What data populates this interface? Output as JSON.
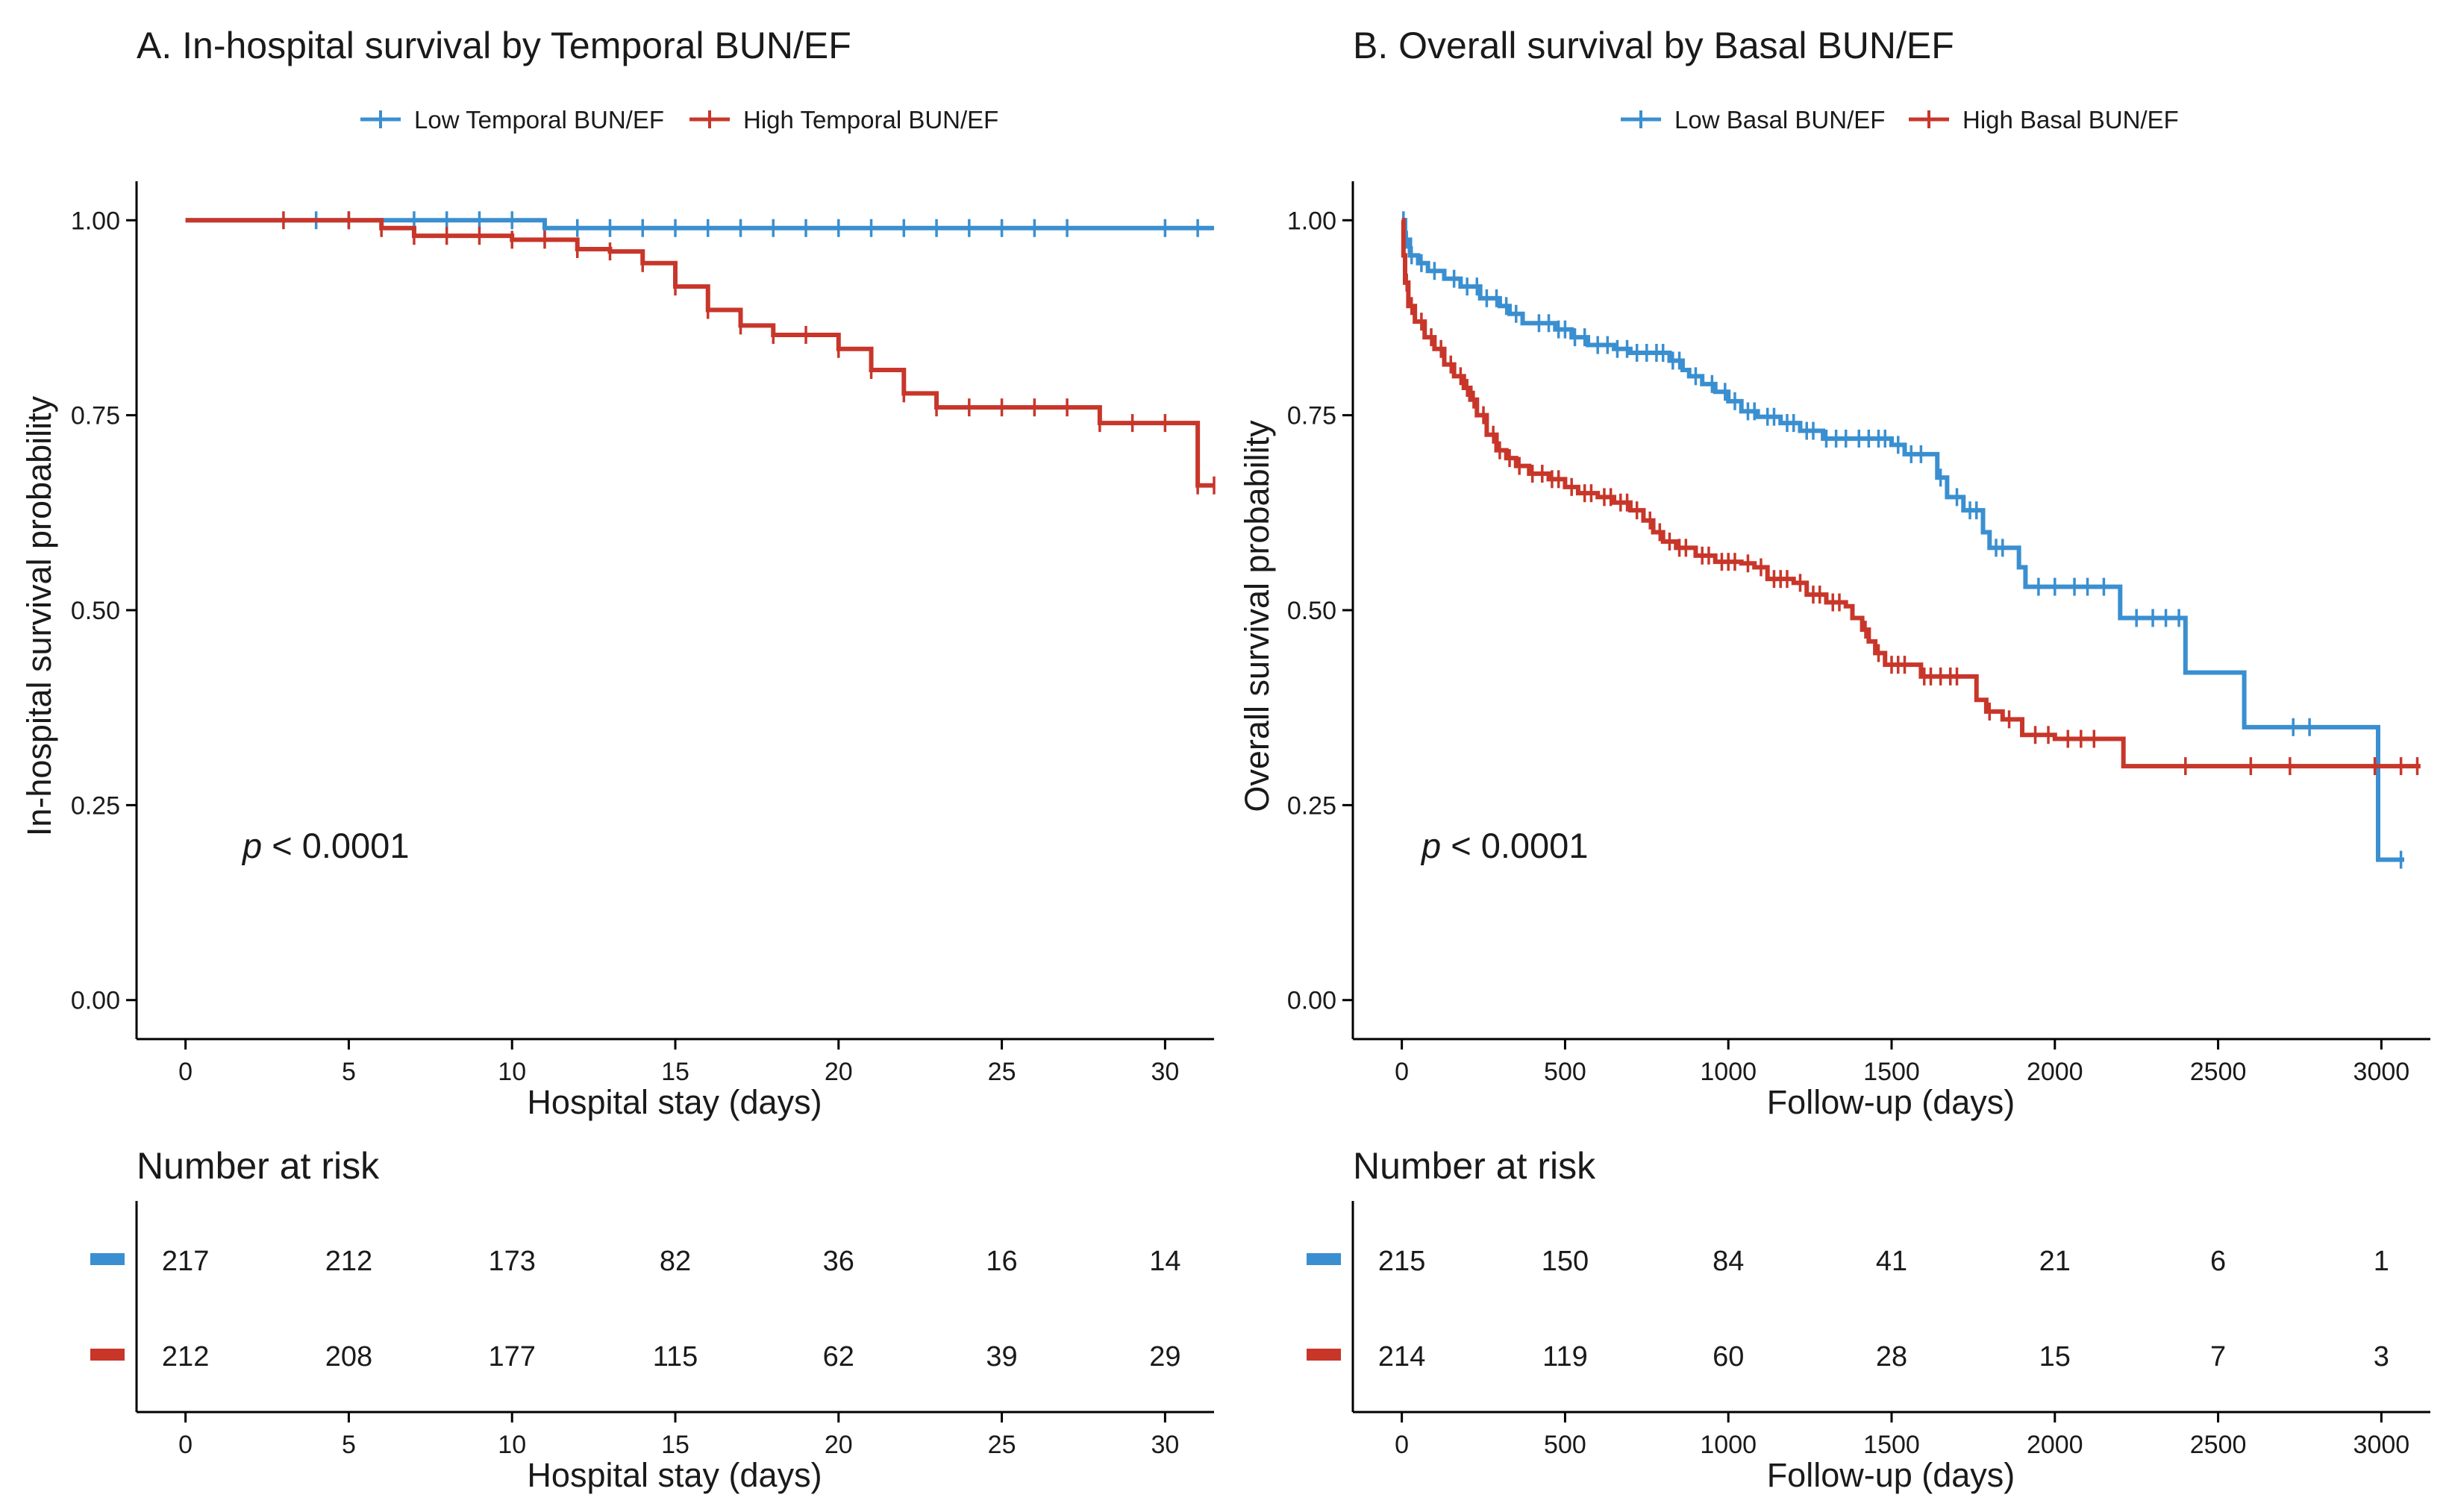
{
  "colors": {
    "low": "#3A8FD0",
    "high": "#C8362A",
    "axis": "#000000",
    "text": "#1a1a1a"
  },
  "chart_data": [
    {
      "type": "line",
      "title": "A. In-hospital survival by Temporal BUN/EF",
      "xlabel": "Hospital stay (days)",
      "ylabel": "In-hospital survival probability",
      "xlim": [
        -1.5,
        31.5
      ],
      "ylim": [
        -0.05,
        1.05
      ],
      "xticks": [
        0,
        5,
        10,
        15,
        20,
        25,
        30
      ],
      "yticks": [
        0,
        0.25,
        0.5,
        0.75,
        1.0
      ],
      "ytick_labels": [
        "0.00",
        "0.25",
        "0.50",
        "0.75",
        "1.00"
      ],
      "legend_position": "top",
      "annotation": {
        "italic": "p",
        "text": " < 0.0001",
        "x": 1.7,
        "y": 0.195
      },
      "series": [
        {
          "name": "Low Temporal BUN/EF",
          "color": "#3A8FD0",
          "steps": [
            [
              0,
              1.0
            ],
            [
              11,
              0.99
            ],
            [
              31.5,
              0.99
            ]
          ],
          "censor": [
            4,
            5,
            7,
            8,
            9,
            10,
            11,
            12,
            13,
            14,
            15,
            16,
            17,
            18,
            19,
            20,
            21,
            22,
            23,
            24,
            25,
            26,
            27,
            30,
            31
          ]
        },
        {
          "name": "High Temporal BUN/EF",
          "color": "#C8362A",
          "steps": [
            [
              0,
              1.0
            ],
            [
              6,
              0.99
            ],
            [
              7,
              0.98
            ],
            [
              10,
              0.975
            ],
            [
              12,
              0.963
            ],
            [
              13,
              0.96
            ],
            [
              14,
              0.945
            ],
            [
              15,
              0.915
            ],
            [
              16,
              0.885
            ],
            [
              17,
              0.865
            ],
            [
              18,
              0.853
            ],
            [
              20,
              0.835
            ],
            [
              21,
              0.808
            ],
            [
              22,
              0.778
            ],
            [
              23,
              0.76
            ],
            [
              27,
              0.76
            ],
            [
              28,
              0.74
            ],
            [
              30,
              0.74
            ],
            [
              31,
              0.66
            ],
            [
              31.5,
              0.66
            ]
          ],
          "censor": [
            3,
            5,
            6,
            7,
            8,
            9,
            10,
            11,
            12,
            13,
            14,
            15,
            16,
            17,
            18,
            19,
            20,
            21,
            22,
            23,
            24,
            25,
            26,
            27,
            28,
            29,
            30,
            31,
            31.5
          ]
        }
      ],
      "risk_table": {
        "title": "Number at risk",
        "rows": [
          {
            "color": "#3A8FD0",
            "values": [
              "217",
              "212",
              "173",
              "82",
              "36",
              "16",
              "14"
            ]
          },
          {
            "color": "#C8362A",
            "values": [
              "212",
              "208",
              "177",
              "115",
              "62",
              "39",
              "29"
            ]
          }
        ],
        "xlabel": "Hospital stay (days)"
      }
    },
    {
      "type": "line",
      "title": "B. Overall survival by Basal BUN/EF",
      "xlabel": "Follow-up (days)",
      "ylabel": "Overall survival probability",
      "xlim": [
        -150,
        3150
      ],
      "ylim": [
        -0.05,
        1.05
      ],
      "xticks": [
        0,
        500,
        1000,
        1500,
        2000,
        2500,
        3000
      ],
      "yticks": [
        0,
        0.25,
        0.5,
        0.75,
        1.0
      ],
      "ytick_labels": [
        "0.00",
        "0.25",
        "0.50",
        "0.75",
        "1.00"
      ],
      "legend_position": "top",
      "annotation": {
        "italic": "p",
        "text": " < 0.0001",
        "x": 50,
        "y": 0.195
      },
      "series": [
        {
          "name": "Low Basal BUN/EF",
          "color": "#3A8FD0",
          "steps": [
            [
              0,
              1.0
            ],
            [
              10,
              0.975
            ],
            [
              25,
              0.955
            ],
            [
              50,
              0.945
            ],
            [
              80,
              0.935
            ],
            [
              130,
              0.925
            ],
            [
              180,
              0.915
            ],
            [
              240,
              0.9
            ],
            [
              300,
              0.89
            ],
            [
              330,
              0.88
            ],
            [
              370,
              0.868
            ],
            [
              470,
              0.86
            ],
            [
              520,
              0.85
            ],
            [
              570,
              0.84
            ],
            [
              650,
              0.835
            ],
            [
              700,
              0.83
            ],
            [
              820,
              0.82
            ],
            [
              860,
              0.808
            ],
            [
              880,
              0.8
            ],
            [
              920,
              0.79
            ],
            [
              960,
              0.78
            ],
            [
              1000,
              0.768
            ],
            [
              1040,
              0.755
            ],
            [
              1090,
              0.748
            ],
            [
              1160,
              0.74
            ],
            [
              1220,
              0.73
            ],
            [
              1290,
              0.72
            ],
            [
              1500,
              0.712
            ],
            [
              1540,
              0.7
            ],
            [
              1610,
              0.7
            ],
            [
              1640,
              0.67
            ],
            [
              1670,
              0.645
            ],
            [
              1720,
              0.628
            ],
            [
              1780,
              0.6
            ],
            [
              1800,
              0.58
            ],
            [
              1860,
              0.58
            ],
            [
              1890,
              0.555
            ],
            [
              1910,
              0.53
            ],
            [
              2180,
              0.53
            ],
            [
              2200,
              0.49
            ],
            [
              2390,
              0.49
            ],
            [
              2400,
              0.42
            ],
            [
              2560,
              0.42
            ],
            [
              2580,
              0.35
            ],
            [
              2980,
              0.35
            ],
            [
              2990,
              0.18
            ],
            [
              3070,
              0.18
            ]
          ],
          "censor": [
            5,
            15,
            30,
            60,
            100,
            160,
            200,
            230,
            260,
            290,
            320,
            350,
            420,
            450,
            480,
            500,
            530,
            560,
            600,
            630,
            660,
            690,
            720,
            750,
            780,
            800,
            830,
            850,
            900,
            950,
            990,
            1020,
            1060,
            1080,
            1120,
            1140,
            1180,
            1200,
            1240,
            1260,
            1300,
            1330,
            1360,
            1400,
            1430,
            1460,
            1480,
            1520,
            1560,
            1590,
            1650,
            1700,
            1740,
            1760,
            1820,
            1840,
            1950,
            2000,
            2060,
            2100,
            2150,
            2250,
            2300,
            2340,
            2380,
            2730,
            2780,
            3060
          ]
        },
        {
          "name": "High Basal BUN/EF",
          "color": "#C8362A",
          "steps": [
            [
              0,
              1.0
            ],
            [
              5,
              0.955
            ],
            [
              10,
              0.92
            ],
            [
              20,
              0.89
            ],
            [
              40,
              0.87
            ],
            [
              70,
              0.85
            ],
            [
              100,
              0.835
            ],
            [
              130,
              0.815
            ],
            [
              160,
              0.8
            ],
            [
              190,
              0.785
            ],
            [
              210,
              0.77
            ],
            [
              230,
              0.75
            ],
            [
              260,
              0.725
            ],
            [
              290,
              0.705
            ],
            [
              320,
              0.695
            ],
            [
              350,
              0.685
            ],
            [
              390,
              0.675
            ],
            [
              450,
              0.668
            ],
            [
              500,
              0.658
            ],
            [
              540,
              0.65
            ],
            [
              600,
              0.645
            ],
            [
              650,
              0.638
            ],
            [
              700,
              0.628
            ],
            [
              740,
              0.615
            ],
            [
              770,
              0.6
            ],
            [
              800,
              0.588
            ],
            [
              840,
              0.58
            ],
            [
              900,
              0.57
            ],
            [
              960,
              0.562
            ],
            [
              1040,
              0.56
            ],
            [
              1080,
              0.555
            ],
            [
              1120,
              0.54
            ],
            [
              1200,
              0.535
            ],
            [
              1240,
              0.52
            ],
            [
              1300,
              0.51
            ],
            [
              1360,
              0.505
            ],
            [
              1380,
              0.49
            ],
            [
              1410,
              0.475
            ],
            [
              1430,
              0.46
            ],
            [
              1450,
              0.445
            ],
            [
              1480,
              0.43
            ],
            [
              1560,
              0.43
            ],
            [
              1590,
              0.415
            ],
            [
              1730,
              0.415
            ],
            [
              1760,
              0.385
            ],
            [
              1790,
              0.37
            ],
            [
              1840,
              0.36
            ],
            [
              1900,
              0.34
            ],
            [
              2000,
              0.335
            ],
            [
              2190,
              0.335
            ],
            [
              2210,
              0.3
            ],
            [
              3120,
              0.3
            ]
          ],
          "censor": [
            15,
            30,
            60,
            90,
            120,
            150,
            180,
            200,
            220,
            250,
            280,
            300,
            330,
            360,
            400,
            430,
            460,
            480,
            520,
            560,
            580,
            620,
            640,
            670,
            690,
            720,
            760,
            790,
            820,
            850,
            870,
            920,
            940,
            980,
            1000,
            1020,
            1060,
            1100,
            1140,
            1160,
            1180,
            1220,
            1260,
            1280,
            1320,
            1340,
            1420,
            1460,
            1500,
            1520,
            1540,
            1600,
            1620,
            1650,
            1680,
            1700,
            1800,
            1860,
            1940,
            1980,
            2040,
            2080,
            2120,
            2400,
            2600,
            2720,
            2980,
            3060,
            3110
          ]
        }
      ],
      "risk_table": {
        "title": "Number at risk",
        "rows": [
          {
            "color": "#3A8FD0",
            "values": [
              "215",
              "150",
              "84",
              "41",
              "21",
              "6",
              "1"
            ]
          },
          {
            "color": "#C8362A",
            "values": [
              "214",
              "119",
              "60",
              "28",
              "15",
              "7",
              "3"
            ]
          }
        ],
        "xlabel": "Follow-up (days)"
      }
    }
  ]
}
